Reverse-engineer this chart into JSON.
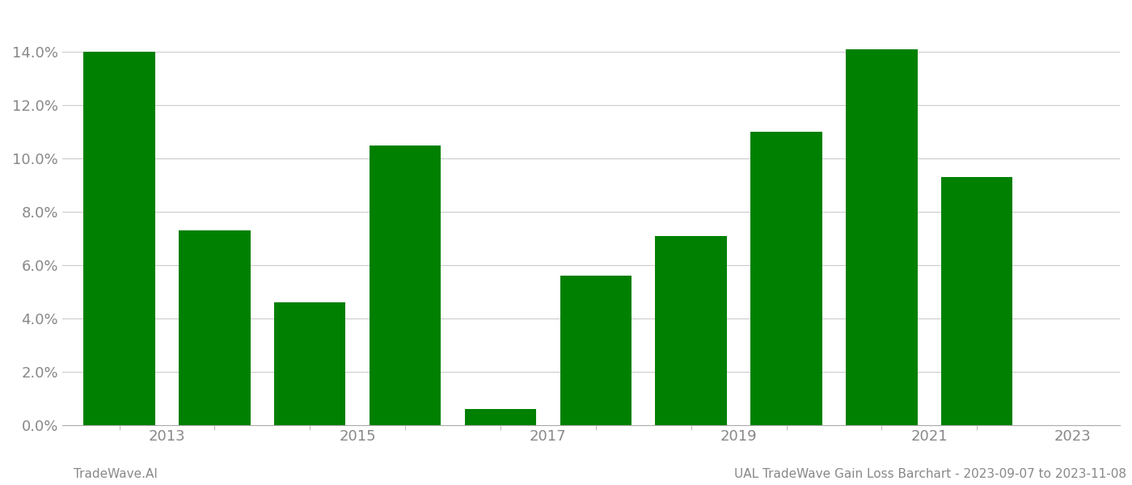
{
  "years": [
    2013,
    2014,
    2015,
    2016,
    2017,
    2018,
    2019,
    2020,
    2021,
    2022
  ],
  "values": [
    0.14,
    0.073,
    0.046,
    0.105,
    0.006,
    0.056,
    0.071,
    0.11,
    0.141,
    0.093
  ],
  "bar_color": "#008000",
  "background_color": "#ffffff",
  "grid_color": "#cccccc",
  "ylabel_color": "#888888",
  "xlabel_color": "#888888",
  "ylim": [
    0,
    0.155
  ],
  "yticks": [
    0.0,
    0.02,
    0.04,
    0.06,
    0.08,
    0.1,
    0.12,
    0.14
  ],
  "xtick_labels": [
    "2013",
    "2015",
    "2017",
    "2019",
    "2021",
    "2023"
  ],
  "xtick_positions": [
    2013.5,
    2015.5,
    2017.5,
    2019.5,
    2021.5,
    2023.0
  ],
  "footer_left": "TradeWave.AI",
  "footer_right": "UAL TradeWave Gain Loss Barchart - 2023-09-07 to 2023-11-08",
  "footer_color": "#888888",
  "footer_fontsize": 11,
  "tick_label_fontsize": 13,
  "bar_width": 0.75
}
